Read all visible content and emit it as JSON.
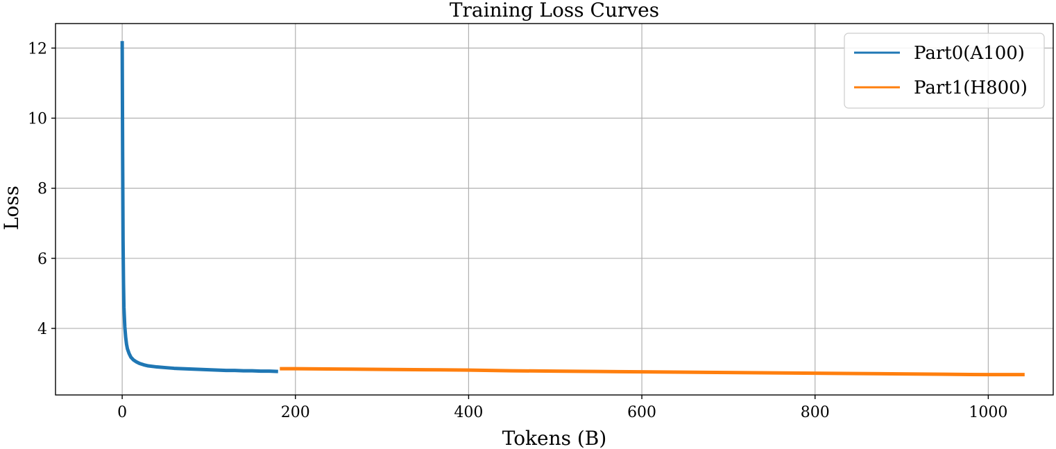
{
  "chart_data": {
    "type": "line",
    "title": "Training Loss Curves",
    "xlabel": "Tokens (B)",
    "ylabel": "Loss",
    "xlim": [
      -77,
      1075
    ],
    "ylim": [
      2.1,
      12.7
    ],
    "xticks": [
      0,
      200,
      400,
      600,
      800,
      1000
    ],
    "yticks": [
      4,
      6,
      8,
      10,
      12
    ],
    "grid": true,
    "legend": "top-right",
    "series": [
      {
        "name": "Part0(A100)",
        "color": "#1f77b4",
        "x": [
          0,
          0.5,
          1,
          1.5,
          2,
          3,
          4,
          5,
          6,
          8,
          10,
          13,
          16,
          20,
          25,
          30,
          40,
          50,
          60,
          70,
          80,
          90,
          100,
          110,
          120,
          130,
          140,
          150,
          160,
          170,
          180
        ],
        "y": [
          12.2,
          9.0,
          6.5,
          5.3,
          4.6,
          4.05,
          3.75,
          3.55,
          3.42,
          3.28,
          3.18,
          3.1,
          3.05,
          3.0,
          2.96,
          2.93,
          2.9,
          2.88,
          2.86,
          2.85,
          2.84,
          2.83,
          2.82,
          2.81,
          2.8,
          2.8,
          2.79,
          2.79,
          2.78,
          2.78,
          2.77
        ]
      },
      {
        "name": "Part1(H800)",
        "color": "#ff7f0e",
        "x": [
          182,
          200,
          250,
          300,
          350,
          400,
          450,
          500,
          550,
          600,
          650,
          700,
          750,
          800,
          850,
          900,
          950,
          1000,
          1042
        ],
        "y": [
          2.85,
          2.85,
          2.84,
          2.83,
          2.82,
          2.81,
          2.79,
          2.78,
          2.77,
          2.76,
          2.75,
          2.74,
          2.73,
          2.72,
          2.71,
          2.7,
          2.69,
          2.68,
          2.68
        ]
      }
    ]
  }
}
